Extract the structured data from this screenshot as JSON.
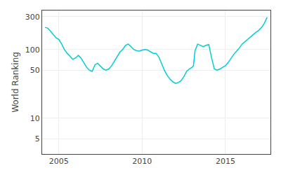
{
  "chart_data": {
    "type": "line",
    "ylabel": "World Ranking",
    "color": "#00CED1",
    "log": "y",
    "grid": true,
    "xlim": [
      2004.0,
      2017.7
    ],
    "ylim": [
      3,
      370
    ],
    "xticks": [
      2005,
      2010,
      2015
    ],
    "yticks": [
      5,
      10,
      50,
      100,
      300
    ],
    "x": [
      2004.17,
      2004.33,
      2004.5,
      2004.67,
      2004.83,
      2005.0,
      2005.17,
      2005.33,
      2005.5,
      2005.67,
      2005.83,
      2006.0,
      2006.17,
      2006.33,
      2006.5,
      2006.67,
      2006.83,
      2007.0,
      2007.17,
      2007.33,
      2007.5,
      2007.67,
      2007.83,
      2008.0,
      2008.17,
      2008.33,
      2008.5,
      2008.67,
      2008.83,
      2009.0,
      2009.17,
      2009.33,
      2009.5,
      2009.67,
      2009.83,
      2010.0,
      2010.17,
      2010.33,
      2010.5,
      2010.67,
      2010.83,
      2011.0,
      2011.17,
      2011.33,
      2011.5,
      2011.67,
      2011.83,
      2012.0,
      2012.17,
      2012.33,
      2012.5,
      2012.67,
      2012.83,
      2013.0,
      2013.08,
      2013.17,
      2013.33,
      2013.5,
      2013.67,
      2013.83,
      2014.0,
      2014.17,
      2014.33,
      2014.5,
      2014.67,
      2014.83,
      2015.0,
      2015.17,
      2015.33,
      2015.5,
      2015.67,
      2015.83,
      2016.0,
      2016.17,
      2016.33,
      2016.5,
      2016.67,
      2016.83,
      2017.0,
      2017.17,
      2017.33,
      2017.5
    ],
    "values": [
      210,
      205,
      185,
      165,
      148,
      140,
      120,
      100,
      88,
      80,
      72,
      75,
      82,
      75,
      65,
      55,
      50,
      48,
      60,
      63,
      57,
      52,
      50,
      52,
      58,
      68,
      80,
      92,
      100,
      115,
      120,
      110,
      100,
      96,
      95,
      98,
      100,
      98,
      93,
      88,
      88,
      78,
      62,
      50,
      42,
      37,
      34,
      32,
      33,
      35,
      40,
      48,
      52,
      55,
      58,
      95,
      120,
      115,
      110,
      115,
      118,
      75,
      52,
      50,
      52,
      55,
      58,
      65,
      75,
      85,
      95,
      105,
      120,
      130,
      140,
      155,
      168,
      178,
      190,
      210,
      240,
      295
    ]
  }
}
